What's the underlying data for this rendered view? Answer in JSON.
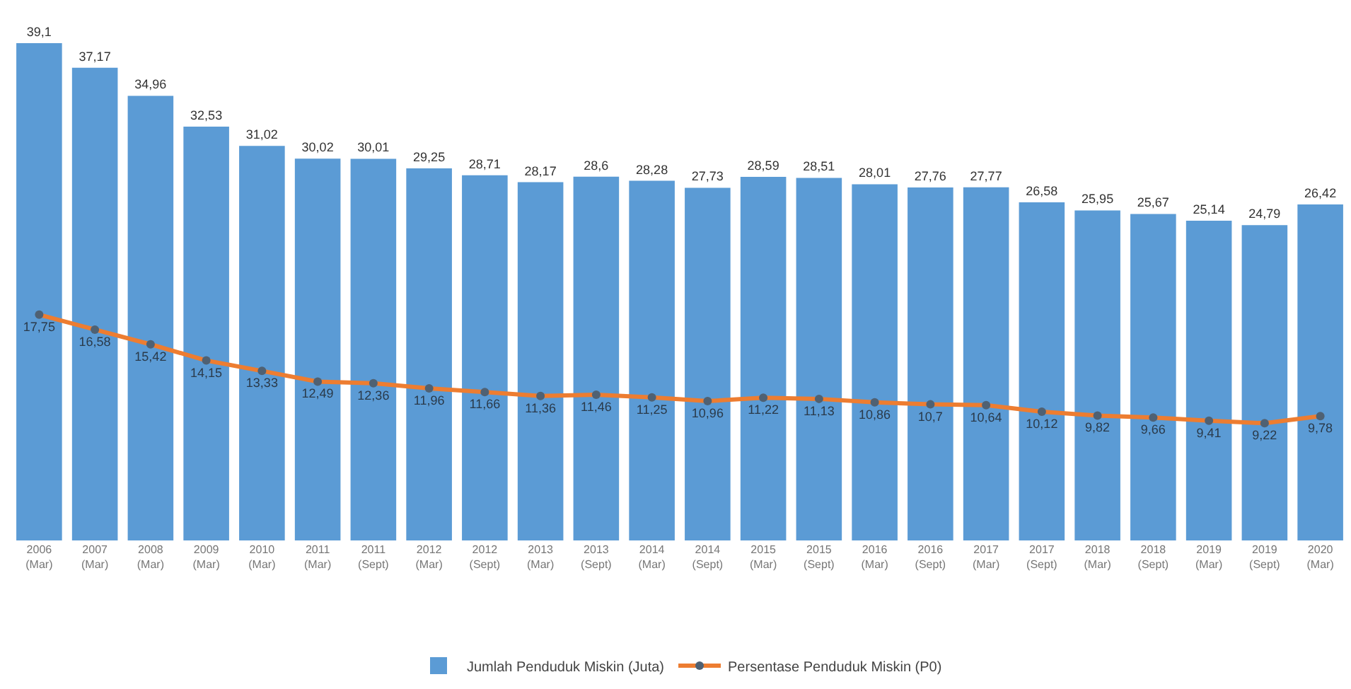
{
  "chart_data": {
    "type": "bar",
    "categories": [
      "2006\n(Mar)",
      "2007\n(Mar)",
      "2008\n(Mar)",
      "2009\n(Mar)",
      "2010\n(Mar)",
      "2011\n(Mar)",
      "2011\n(Sept)",
      "2012\n(Mar)",
      "2012\n(Sept)",
      "2013\n(Mar)",
      "2013\n(Sept)",
      "2014\n(Mar)",
      "2014\n(Sept)",
      "2015\n(Mar)",
      "2015\n(Sept)",
      "2016\n(Mar)",
      "2016\n(Sept)",
      "2017\n(Mar)",
      "2017\n(Sept)",
      "2018\n(Mar)",
      "2018\n(Sept)",
      "2019\n(Mar)",
      "2019\n(Sept)",
      "2020\n(Mar)"
    ],
    "series": [
      {
        "name": "Jumlah Penduduk Miskin (Juta)",
        "color": "#5b9bd5",
        "values": [
          39.1,
          37.17,
          34.96,
          32.53,
          31.02,
          30.02,
          30.01,
          29.25,
          28.71,
          28.17,
          28.6,
          28.28,
          27.73,
          28.59,
          28.51,
          28.01,
          27.76,
          27.77,
          26.58,
          25.95,
          25.67,
          25.14,
          24.79,
          26.42
        ],
        "value_labels": [
          "39,1",
          "37,17",
          "34,96",
          "32,53",
          "31,02",
          "30,02",
          "30,01",
          "29,25",
          "28,71",
          "28,17",
          "28,6",
          "28,28",
          "27,73",
          "28,59",
          "28,51",
          "28,01",
          "27,76",
          "27,77",
          "26,58",
          "25,95",
          "25,67",
          "25,14",
          "24,79",
          "26,42"
        ]
      },
      {
        "name": "Persentase Penduduk Miskin (P0)",
        "type": "line",
        "color": "#ed7d31",
        "marker": "circle",
        "values": [
          17.75,
          16.58,
          15.42,
          14.15,
          13.33,
          12.49,
          12.36,
          11.96,
          11.66,
          11.36,
          11.46,
          11.25,
          10.96,
          11.22,
          11.13,
          10.86,
          10.7,
          10.64,
          10.12,
          9.82,
          9.66,
          9.41,
          9.22,
          9.78
        ],
        "value_labels": [
          "17,75",
          "16,58",
          "15,42",
          "14,15",
          "13,33",
          "12,49",
          "12,36",
          "11,96",
          "11,66",
          "11,36",
          "11,46",
          "11,25",
          "10,96",
          "11,22",
          "11,13",
          "10,86",
          "10,7",
          "10,64",
          "10,12",
          "9,82",
          "9,66",
          "9,41",
          "9,22",
          "9,78"
        ]
      }
    ],
    "tick_labels": "x",
    "grid": false,
    "legend": "bottom"
  }
}
